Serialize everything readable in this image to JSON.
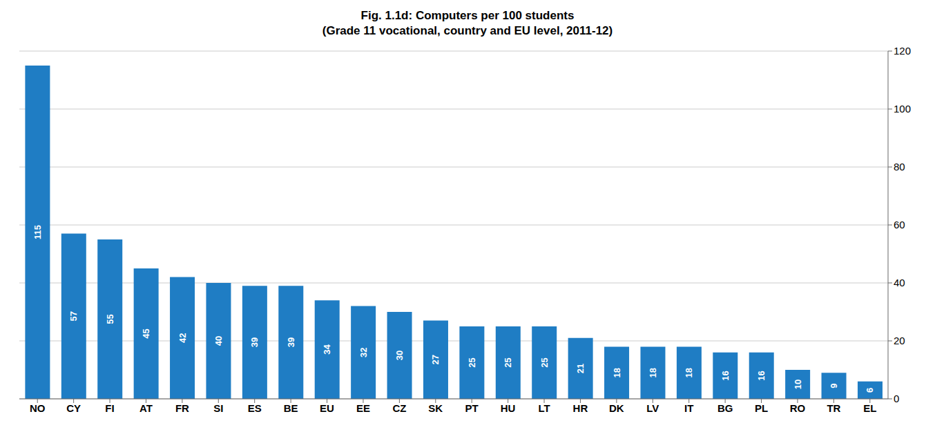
{
  "chart_data": {
    "type": "bar",
    "title": "Fig. 1.1d: Computers per 100 students",
    "subtitle": "(Grade 11 vocational, country and EU level, 2011-12)",
    "categories": [
      "NO",
      "CY",
      "FI",
      "AT",
      "FR",
      "SI",
      "ES",
      "BE",
      "EU",
      "EE",
      "CZ",
      "SK",
      "PT",
      "HU",
      "LT",
      "HR",
      "DK",
      "LV",
      "IT",
      "BG",
      "PL",
      "RO",
      "TR",
      "EL"
    ],
    "values": [
      115,
      57,
      55,
      45,
      42,
      40,
      39,
      39,
      34,
      32,
      30,
      27,
      25,
      25,
      25,
      21,
      18,
      18,
      18,
      16,
      16,
      10,
      9,
      6
    ],
    "color": "#1F7DC4",
    "ylim": [
      0,
      120
    ],
    "yticks": [
      0,
      20,
      40,
      60,
      80,
      100,
      120
    ],
    "grid": true,
    "data_labels": true
  }
}
